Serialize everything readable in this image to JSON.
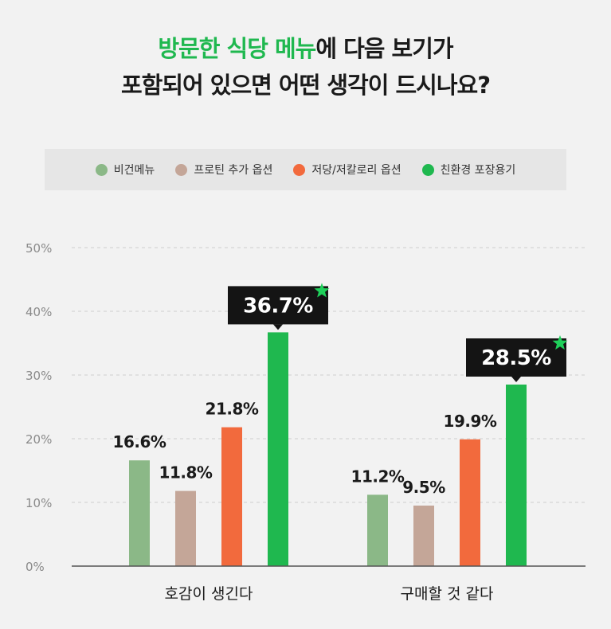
{
  "title": {
    "line1_highlight": "방문한 식당 메뉴",
    "line1_rest": "에 다음 보기가",
    "line2": "포함되어 있으면 어떤 생각이 드시나요?"
  },
  "colors": {
    "title_highlight": "#1fb84f",
    "vegan": "#8bb887",
    "protein": "#c4a698",
    "lowcal": "#f26a3d",
    "eco": "#1fb84f",
    "callout_bg": "#141414",
    "callout_star": "#1fd05a"
  },
  "chart_data": {
    "type": "bar",
    "categories": [
      "호감이 생긴다",
      "구매할 것 같다"
    ],
    "series": [
      {
        "name": "비건메뉴",
        "values": [
          16.6,
          11.2
        ],
        "labels": [
          "16.6%",
          "11.2%"
        ]
      },
      {
        "name": "프로틴 추가 옵션",
        "values": [
          11.8,
          9.5
        ],
        "labels": [
          "11.8%",
          "9.5%"
        ]
      },
      {
        "name": "저당/저칼로리 옵션",
        "values": [
          21.8,
          19.9
        ],
        "labels": [
          "21.8%",
          "19.9%"
        ]
      },
      {
        "name": "친환경 포장용기",
        "values": [
          36.7,
          28.5
        ],
        "labels": [
          "36.7%",
          "28.5%"
        ],
        "highlighted": true
      }
    ],
    "yticks": [
      "0%",
      "10%",
      "20%",
      "30%",
      "40%",
      "50%"
    ],
    "ylim": [
      0,
      50
    ],
    "grid": true,
    "legend_position": "top"
  }
}
